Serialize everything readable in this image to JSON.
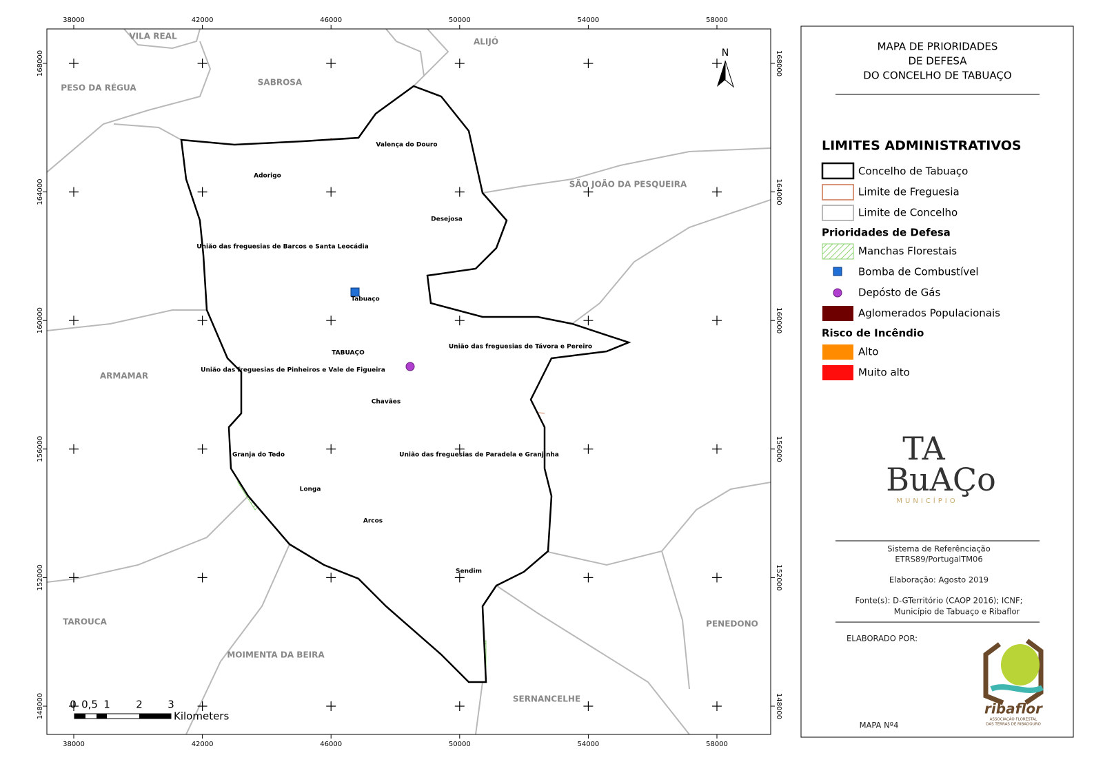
{
  "map": {
    "x_ticks": [
      38000,
      42000,
      46000,
      50000,
      54000,
      58000
    ],
    "y_ticks": [
      168000,
      164000,
      160000,
      156000,
      152000,
      148000
    ],
    "north": "N",
    "neighbors": [
      "VILA REAL",
      "ALIJÓ",
      "PESO DA RÉGUA",
      "SABROSA",
      "SÃO JOÃO DA PESQUEIRA",
      "ARMAMAR",
      "TAROUCA",
      "MOIMENTA DA BEIRA",
      "SERNANCELHE",
      "PENEDONO"
    ],
    "parishes": [
      "Valença do Douro",
      "Adorigo",
      "Desejosa",
      "União das freguesias de Barcos e Santa Leocádia",
      "Tabuaço",
      "TABUAÇO",
      "União das freguesias de Távora e Pereiro",
      "União das freguesias de Pinheiros e Vale de Figueira",
      "Chavães",
      "Granja do Tedo",
      "União das freguesias de Paradela e Granjinha",
      "Longa",
      "Arcos",
      "Sendim"
    ],
    "scale": {
      "labels": [
        "0",
        "0,5",
        "1",
        "2",
        "3"
      ],
      "unit": "Kilometers"
    }
  },
  "legend": {
    "title": [
      "MAPA DE PRIORIDADES",
      "DE DEFESA",
      "DO CONCELHO DE TABUAÇO"
    ],
    "admin_heading": "LIMITES ADMINISTRATIVOS",
    "admin_items": [
      "Concelho de Tabuaço",
      "Limite de Freguesia",
      "Limite de Concelho"
    ],
    "defense_heading": "Prioridades de Defesa",
    "defense_items": [
      "Manchas Florestais",
      "Bomba de Combustível",
      "Depósto de Gás",
      "Aglomerados Populacionais"
    ],
    "risk_heading": "Risco de Incêndio",
    "risk_items": [
      "Alto",
      "Muito alto"
    ],
    "logo": [
      "TA",
      "BuAÇo",
      "MUNICÍPIO"
    ],
    "reference": [
      "Sistema de Referênciação",
      "ETRS89/PortugalTM06"
    ],
    "date": "Elaboração: Agosto 2019",
    "sources": [
      "Fonte(s): D-GTerritório (CAOP 2016); ICNF;",
      "Município de Tabuaço e Ribaflor"
    ],
    "made_by": "ELABORADO POR:",
    "ribaflor": [
      "ribaflor",
      "ASSOCIAÇÃO FLORESTAL",
      "DAS TERRAS DE RIBADOURO"
    ],
    "map_number": "MAPA Nº4"
  }
}
